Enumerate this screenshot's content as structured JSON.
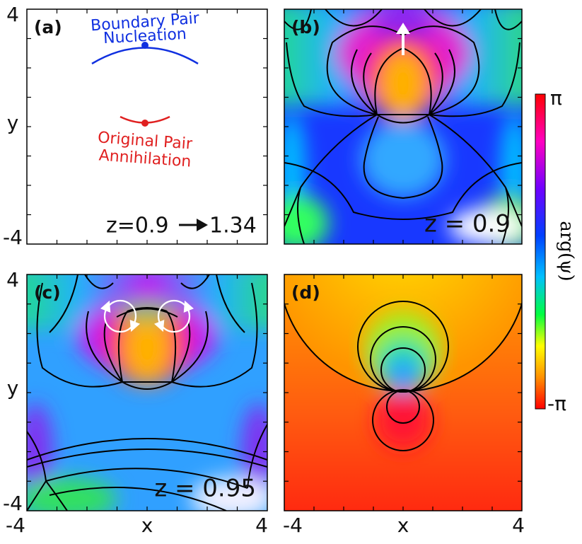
{
  "panels": {
    "a": {
      "label": "(a)",
      "nucleation": [
        "Boundary Pair",
        "Nucleation"
      ],
      "annihilation": [
        "Original Pair",
        "Annihilation"
      ],
      "z_from": "z=0.9",
      "z_to": "1.34"
    },
    "b": {
      "label": "(b)",
      "z": "z = 0.9"
    },
    "c": {
      "label": "(c)",
      "z": "z = 0.95"
    },
    "d": {
      "label": "(d)"
    }
  },
  "axes": {
    "top_left_y": {
      "max": "4",
      "label": "y",
      "min": "-4"
    },
    "bottom_left_y": {
      "max": "4",
      "label": "y",
      "min": "-4"
    },
    "bottom_left_x": {
      "min": "-4",
      "label": "x",
      "max": "4"
    },
    "bottom_right_x": {
      "min": "-4",
      "label": "x",
      "max": "4"
    }
  },
  "colorbar": {
    "max": "π",
    "min": "-π",
    "label": "arg(ψ)"
  }
}
